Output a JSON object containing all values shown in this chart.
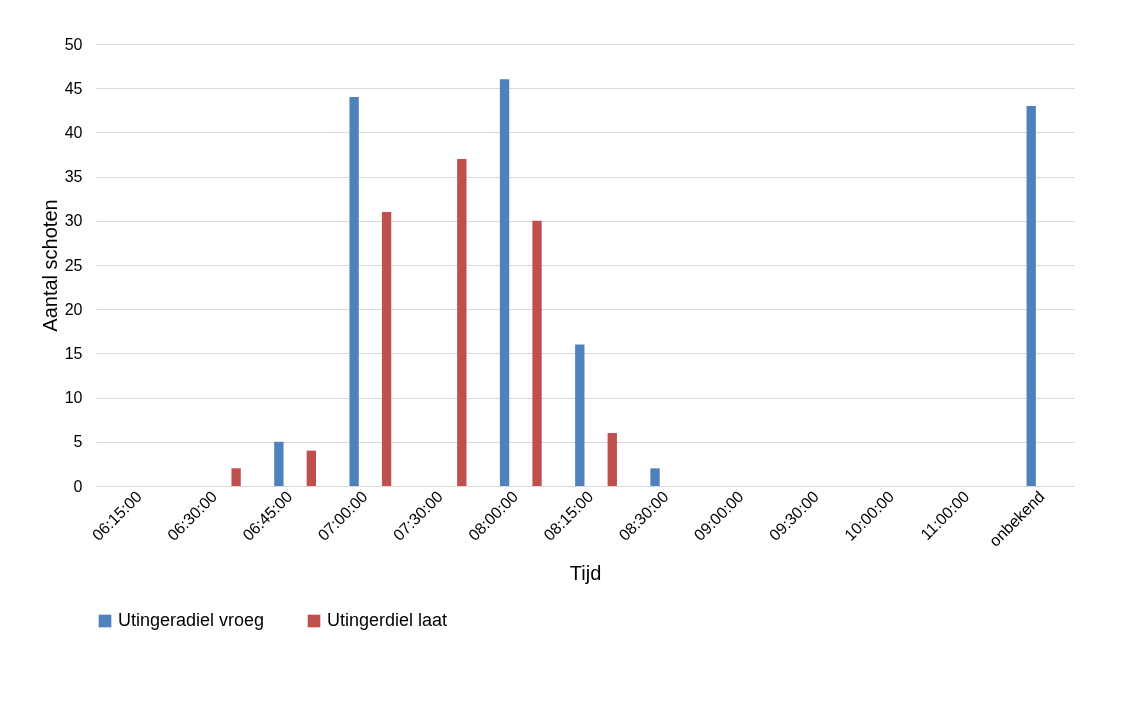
{
  "chart_data": {
    "type": "bar",
    "xlabel": "Tijd",
    "ylabel": "Aantal schoten",
    "categories": [
      "06:15:00",
      "06:30:00",
      "06:45:00",
      "07:00:00",
      "07:30:00",
      "08:00:00",
      "08:15:00",
      "08:30:00",
      "09:00:00",
      "09:30:00",
      "10:00:00",
      "11:00:00",
      "onbekend"
    ],
    "series": [
      {
        "name": "Utingeradiel vroeg",
        "color": "#4f81bd",
        "values": [
          null,
          null,
          5,
          44,
          null,
          46,
          16,
          2,
          null,
          null,
          null,
          null,
          43
        ]
      },
      {
        "name": "Utingerdiel laat",
        "color": "#c0504d",
        "values": [
          null,
          2,
          4,
          31,
          37,
          30,
          6,
          null,
          null,
          null,
          null,
          null,
          null
        ]
      }
    ],
    "ylim": [
      0,
      50
    ],
    "yticks": [
      0,
      5,
      10,
      15,
      20,
      25,
      30,
      35,
      40,
      45,
      50
    ],
    "grid": "y",
    "legend": "bottom"
  }
}
